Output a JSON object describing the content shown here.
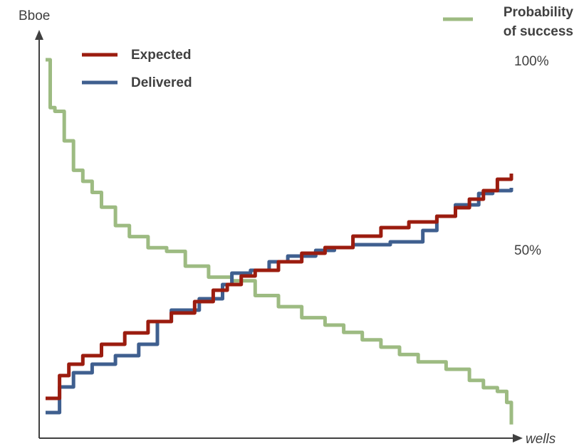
{
  "chart_data": {
    "type": "line",
    "title": "",
    "xlabel": "wells",
    "ylabel": "Bboe",
    "secondary_ylabel": "Probability of success",
    "secondary_ylabel_lines": [
      "Probability",
      "of success"
    ],
    "secondary_ticks": [
      {
        "value": 100,
        "label": "100%"
      },
      {
        "value": 50,
        "label": "50%"
      }
    ],
    "secondary_ylim": [
      0,
      100
    ],
    "ylim": [
      0,
      100
    ],
    "xlim": [
      0,
      100
    ],
    "grid": false,
    "legend_position": "top-left",
    "series": [
      {
        "name": "Expected",
        "color": "#9b1c0f",
        "axis": "left",
        "x": [
          0,
          3,
          5,
          8,
          12,
          17,
          22,
          27,
          32,
          36,
          39,
          42,
          45,
          50,
          55,
          60,
          66,
          72,
          78,
          84,
          88,
          91,
          94,
          97,
          100
        ],
        "y": [
          10,
          18,
          22,
          25,
          29,
          33,
          37,
          40,
          44,
          48,
          50,
          53,
          55,
          58,
          61,
          63,
          67,
          70,
          72,
          74,
          77,
          80,
          83,
          87,
          89
        ]
      },
      {
        "name": "Delivered",
        "color": "#3f5f8f",
        "axis": "left",
        "x": [
          0,
          3,
          6,
          10,
          15,
          20,
          24,
          27,
          33,
          38,
          40,
          44,
          48,
          52,
          58,
          62,
          66,
          70,
          74,
          80,
          81,
          84,
          88,
          93,
          96,
          100
        ],
        "y": [
          5,
          14,
          19,
          22,
          25,
          29,
          37,
          41,
          45,
          50,
          54,
          55,
          58,
          60,
          62,
          63,
          64,
          64,
          65,
          65,
          69,
          74,
          78,
          82,
          83,
          84
        ]
      },
      {
        "name": "Probability of success",
        "color": "#9dbb82",
        "axis": "right",
        "x": [
          0,
          1,
          2,
          4,
          6,
          8,
          10,
          12,
          15,
          18,
          22,
          26,
          30,
          35,
          40,
          45,
          50,
          55,
          60,
          64,
          68,
          72,
          76,
          80,
          86,
          91,
          94,
          97,
          99,
          100
        ],
        "y": [
          100,
          87,
          86,
          78,
          70,
          67,
          64,
          60,
          55,
          52,
          49,
          48,
          44,
          41,
          40,
          36,
          33,
          30,
          28,
          26,
          24,
          22,
          20,
          18,
          16,
          13,
          11,
          10,
          7,
          1
        ]
      }
    ]
  }
}
